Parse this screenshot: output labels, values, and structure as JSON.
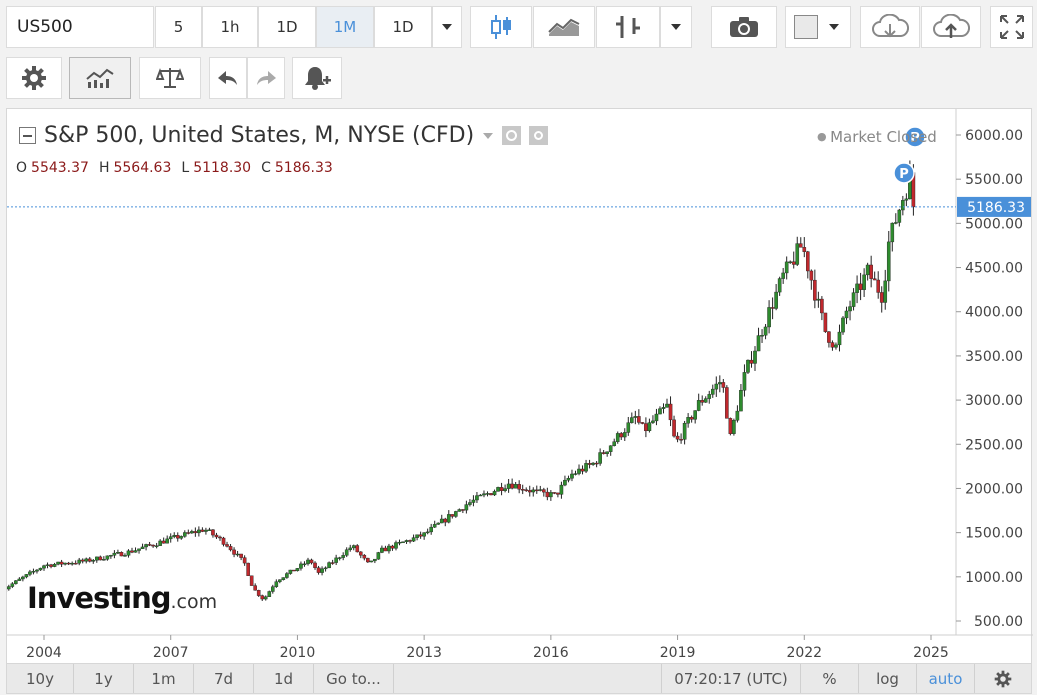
{
  "toolbar": {
    "symbol": "US500",
    "timeframes": [
      "5",
      "1h",
      "1D",
      "1M",
      "1D"
    ],
    "active_timeframe": "1M"
  },
  "chart": {
    "title": "S&P 500, United States, M, NYSE (CFD)",
    "status": "Market Closed",
    "ohlc": {
      "o_label": "O",
      "o": "5543.37",
      "h_label": "H",
      "h": "5564.63",
      "l_label": "L",
      "l": "5118.30",
      "c_label": "C",
      "c": "5186.33"
    },
    "last_price_label": "5186.33",
    "marker_label": "P",
    "logo_main": "Investing",
    "logo_suffix": ".com"
  },
  "bottombar": {
    "ranges": [
      "10y",
      "1y",
      "1m",
      "7d",
      "1d"
    ],
    "goto": "Go to...",
    "time": "07:20:17 (UTC)",
    "percent": "%",
    "log": "log",
    "auto": "auto"
  },
  "colors": {
    "up": "#2e8b2e",
    "down": "#c0282d",
    "price_tag": "#4a90d9",
    "accent": "#4a90d9"
  },
  "chart_data": {
    "type": "candlestick",
    "interval": "monthly",
    "x_ticks": [
      "2004",
      "2007",
      "2010",
      "2013",
      "2016",
      "2019",
      "2022",
      "2025"
    ],
    "y_ticks": [
      "500.00",
      "1000.00",
      "1500.00",
      "2000.00",
      "2500.00",
      "3000.00",
      "3500.00",
      "4000.00",
      "4500.00",
      "5000.00",
      "5500.00",
      "6000.00"
    ],
    "ylim": [
      330,
      6150
    ],
    "last_close": 5186.33,
    "anchors": [
      [
        2003.0,
        850
      ],
      [
        2003.5,
        990
      ],
      [
        2004.0,
        1130
      ],
      [
        2005.0,
        1180
      ],
      [
        2006.0,
        1280
      ],
      [
        2007.0,
        1430
      ],
      [
        2007.8,
        1540
      ],
      [
        2008.3,
        1380
      ],
      [
        2008.75,
        1150
      ],
      [
        2008.95,
        870
      ],
      [
        2009.2,
        740
      ],
      [
        2009.5,
        960
      ],
      [
        2010.0,
        1100
      ],
      [
        2010.3,
        1190
      ],
      [
        2010.5,
        1040
      ],
      [
        2011.3,
        1350
      ],
      [
        2011.7,
        1130
      ],
      [
        2012.0,
        1300
      ],
      [
        2013.0,
        1480
      ],
      [
        2014.0,
        1820
      ],
      [
        2015.0,
        2060
      ],
      [
        2015.7,
        1950
      ],
      [
        2016.1,
        1920
      ],
      [
        2016.5,
        2160
      ],
      [
        2017.0,
        2280
      ],
      [
        2018.0,
        2800
      ],
      [
        2018.2,
        2650
      ],
      [
        2018.75,
        2930
      ],
      [
        2018.95,
        2500
      ],
      [
        2019.5,
        2960
      ],
      [
        2020.05,
        3230
      ],
      [
        2020.25,
        2580
      ],
      [
        2020.6,
        3300
      ],
      [
        2021.0,
        3800
      ],
      [
        2021.5,
        4400
      ],
      [
        2021.95,
        4760
      ],
      [
        2022.3,
        4130
      ],
      [
        2022.5,
        3780
      ],
      [
        2022.75,
        3600
      ],
      [
        2023.0,
        4000
      ],
      [
        2023.5,
        4450
      ],
      [
        2023.85,
        4180
      ],
      [
        2024.0,
        4780
      ],
      [
        2024.3,
        5250
      ],
      [
        2024.5,
        5500
      ],
      [
        2024.6,
        5186
      ]
    ]
  }
}
